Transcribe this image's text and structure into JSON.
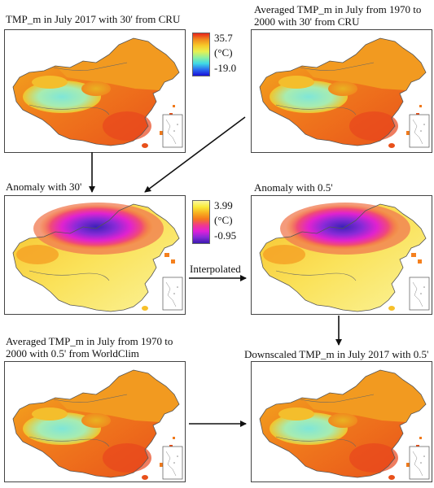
{
  "panels": {
    "p1": {
      "caption": "TMP_m in July 2017 with 30' from CRU"
    },
    "p2": {
      "caption": "Averaged TMP_m in July from 1970 to\n2000 with 30' from CRU"
    },
    "p3": {
      "caption": "Anomaly with 30'"
    },
    "p4": {
      "caption": "Anomaly with 0.5'"
    },
    "p5": {
      "caption": "Averaged TMP_m in July from 1970 to\n2000 with 0.5' from WorldClim"
    },
    "p6": {
      "caption": "Downscaled TMP_m in July 2017 with 0.5'"
    }
  },
  "legend_temperature": {
    "max": "35.7",
    "unit": "(°C)",
    "min": "-19.0"
  },
  "legend_anomaly": {
    "max": "3.99",
    "unit": "(°C)",
    "min": "-0.95"
  },
  "arrow_label": "Interpolated",
  "colors": {
    "temp_scale": [
      "#1a10d8",
      "#2a6cf0",
      "#3fd9e6",
      "#8ef0a0",
      "#e8f050",
      "#f7c828",
      "#f08a1e",
      "#e8241a"
    ],
    "anomaly_scale": [
      "#3a1ab0",
      "#8a2ad8",
      "#e020d8",
      "#f03a8a",
      "#f5781e",
      "#f7b020",
      "#faeb3a",
      "#fbf7a0"
    ]
  }
}
